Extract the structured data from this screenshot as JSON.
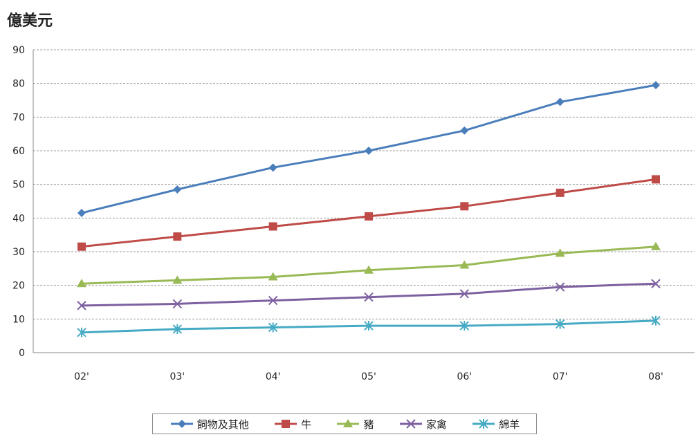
{
  "chart_data": {
    "type": "line",
    "unit_label": "億美元",
    "categories": [
      "02'",
      "03'",
      "04'",
      "05'",
      "06'",
      "07'",
      "08'"
    ],
    "ylim": [
      0,
      90
    ],
    "yticks": [
      0,
      10,
      20,
      30,
      40,
      50,
      60,
      70,
      80,
      90
    ],
    "grid": true,
    "legend_position": "bottom",
    "series": [
      {
        "name": "飼物及其他",
        "color": "#4a7ebb",
        "marker": "diamond",
        "values": [
          41.5,
          48.5,
          55,
          60,
          66,
          74.5,
          79.5
        ]
      },
      {
        "name": "牛",
        "color": "#be4b48",
        "marker": "square",
        "values": [
          31.5,
          34.5,
          37.5,
          40.5,
          43.5,
          47.5,
          51.5
        ]
      },
      {
        "name": "豬",
        "color": "#98b954",
        "marker": "triangle",
        "values": [
          20.5,
          21.5,
          22.5,
          24.5,
          26,
          29.5,
          31.5
        ]
      },
      {
        "name": "家禽",
        "color": "#7d60a0",
        "marker": "x",
        "values": [
          14,
          14.5,
          15.5,
          16.5,
          17.5,
          19.5,
          20.5
        ]
      },
      {
        "name": "綿羊",
        "color": "#46aac5",
        "marker": "star",
        "values": [
          6,
          7,
          7.5,
          8,
          8,
          8.5,
          9.5
        ]
      }
    ]
  }
}
